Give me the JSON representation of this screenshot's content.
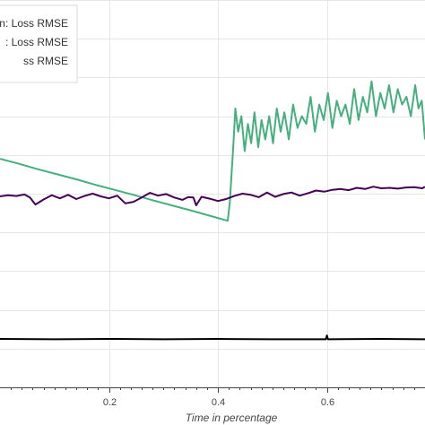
{
  "chart_data": {
    "type": "line",
    "xlabel": "Time in percentage",
    "ylabel": "",
    "xlim": [
      0.0,
      0.78
    ],
    "ylim": [
      0,
      100
    ],
    "x_ticks": [
      {
        "value": 0.2,
        "label": "0.2"
      },
      {
        "value": 0.4,
        "label": "0.4"
      },
      {
        "value": 0.6,
        "label": "0.6"
      }
    ],
    "grid": true,
    "legend_position": "top-left",
    "legend_entries": [
      {
        "text": "n: Loss RMSE",
        "color": "#45b07c"
      },
      {
        "text": ": Loss RMSE",
        "color": "#440154"
      },
      {
        "text": "ss RMSE",
        "color": "#000000"
      }
    ],
    "series": [
      {
        "color": "#45b07c",
        "x": [
          0.0,
          0.035,
          0.07,
          0.105,
          0.14,
          0.175,
          0.21,
          0.245,
          0.28,
          0.315,
          0.35,
          0.385,
          0.418,
          0.422,
          0.428,
          0.432,
          0.437,
          0.443,
          0.449,
          0.455,
          0.461,
          0.467,
          0.474,
          0.48,
          0.487,
          0.494,
          0.501,
          0.508,
          0.515,
          0.522,
          0.53,
          0.538,
          0.546,
          0.554,
          0.562,
          0.57,
          0.578,
          0.586,
          0.594,
          0.602,
          0.61,
          0.618,
          0.626,
          0.634,
          0.642,
          0.65,
          0.658,
          0.666,
          0.674,
          0.682,
          0.69,
          0.698,
          0.706,
          0.714,
          0.722,
          0.73,
          0.738,
          0.746,
          0.754,
          0.762,
          0.768,
          0.774,
          0.78
        ],
        "y": [
          59,
          57.7,
          56.3,
          55,
          53.7,
          52.3,
          51,
          49.7,
          48.3,
          47,
          45.7,
          44.3,
          43,
          48,
          62,
          72,
          66,
          70,
          61,
          68,
          63,
          71,
          62,
          69,
          64,
          70,
          63,
          72,
          66,
          71,
          64,
          73,
          67,
          70,
          68,
          75,
          66,
          73,
          69,
          76,
          67,
          74,
          70,
          73,
          68,
          77,
          69,
          75,
          71,
          79,
          70,
          76,
          72,
          78,
          71,
          77,
          73,
          75,
          70,
          78,
          72,
          74,
          64
        ]
      },
      {
        "color": "#440154",
        "x": [
          0.0,
          0.015,
          0.03,
          0.045,
          0.055,
          0.065,
          0.08,
          0.095,
          0.11,
          0.125,
          0.14,
          0.155,
          0.17,
          0.185,
          0.2,
          0.215,
          0.23,
          0.245,
          0.26,
          0.275,
          0.29,
          0.305,
          0.32,
          0.335,
          0.345,
          0.355,
          0.36,
          0.37,
          0.385,
          0.4,
          0.415,
          0.43,
          0.445,
          0.46,
          0.475,
          0.49,
          0.505,
          0.52,
          0.535,
          0.55,
          0.565,
          0.58,
          0.595,
          0.61,
          0.625,
          0.64,
          0.655,
          0.67,
          0.685,
          0.7,
          0.715,
          0.73,
          0.745,
          0.76,
          0.775,
          0.78
        ],
        "y": [
          49.3,
          49.6,
          49.4,
          49.8,
          49.0,
          47.2,
          48.5,
          49.6,
          48.8,
          49.7,
          48.6,
          49.4,
          50.0,
          49.3,
          48.8,
          49.5,
          47.5,
          47.9,
          49.0,
          50.2,
          49.5,
          49.9,
          49.0,
          48.4,
          49.1,
          49.0,
          47.0,
          49.2,
          48.7,
          48.1,
          48.6,
          49.4,
          50.0,
          49.7,
          49.1,
          50.3,
          49.2,
          49.9,
          50.3,
          49.5,
          50.1,
          50.8,
          50.5,
          51.0,
          51.2,
          50.9,
          51.5,
          51.2,
          51.8,
          51.4,
          51.5,
          51.3,
          51.6,
          51.7,
          51.4,
          51.8
        ]
      },
      {
        "color": "#000000",
        "x": [
          0.0,
          0.1,
          0.2,
          0.3,
          0.4,
          0.5,
          0.598,
          0.6,
          0.602,
          0.7,
          0.78
        ],
        "y": [
          12.5,
          12.4,
          12.5,
          12.4,
          12.5,
          12.4,
          12.4,
          13.4,
          12.4,
          12.5,
          12.4
        ]
      }
    ]
  }
}
